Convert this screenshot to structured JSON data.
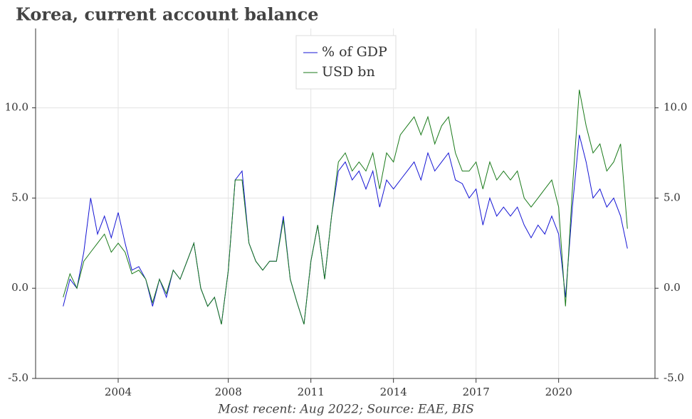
{
  "chart_data": {
    "type": "line",
    "title": "Korea, current account balance",
    "footnote": "Most recent: Aug 2022; Source: EAE, BIS",
    "x": [
      2002,
      2002.25,
      2002.5,
      2002.75,
      2003,
      2003.25,
      2003.5,
      2003.75,
      2004,
      2004.25,
      2004.5,
      2004.75,
      2005,
      2005.25,
      2005.5,
      2005.75,
      2006,
      2006.25,
      2006.5,
      2006.75,
      2007,
      2007.25,
      2007.5,
      2007.75,
      2008,
      2008.25,
      2008.5,
      2008.75,
      2009,
      2009.25,
      2009.5,
      2009.75,
      2010,
      2010.25,
      2010.5,
      2010.75,
      2011,
      2011.25,
      2011.5,
      2011.75,
      2012,
      2012.25,
      2012.5,
      2012.75,
      2013,
      2013.25,
      2013.5,
      2013.75,
      2014,
      2014.25,
      2014.5,
      2014.75,
      2015,
      2015.25,
      2015.5,
      2015.75,
      2016,
      2016.25,
      2016.5,
      2016.75,
      2017,
      2017.25,
      2017.5,
      2017.75,
      2018,
      2018.25,
      2018.5,
      2018.75,
      2019,
      2019.25,
      2019.5,
      2019.75,
      2020,
      2020.25,
      2020.5,
      2020.75,
      2021,
      2021.25,
      2021.5,
      2021.75,
      2022,
      2022.25,
      2022.5
    ],
    "series": [
      {
        "name": "% of GDP",
        "color": "#1515d4",
        "values": [
          -1.0,
          0.5,
          0.0,
          2.0,
          5.0,
          3.0,
          4.0,
          2.8,
          4.2,
          2.5,
          1.0,
          1.2,
          0.5,
          -1.0,
          0.5,
          -0.5,
          1.0,
          0.5,
          1.5,
          2.5,
          0.0,
          -1.0,
          -0.5,
          -2.0,
          1.0,
          6.0,
          6.5,
          2.5,
          1.5,
          1.0,
          1.5,
          1.5,
          4.0,
          0.5,
          -0.8,
          -2.0,
          1.5,
          3.5,
          0.5,
          4.0,
          6.5,
          7.0,
          6.0,
          6.5,
          5.5,
          6.5,
          4.5,
          6.0,
          5.5,
          6.0,
          6.5,
          7.0,
          6.0,
          7.5,
          6.5,
          7.0,
          7.5,
          6.0,
          5.8,
          5.0,
          5.5,
          3.5,
          5.0,
          4.0,
          4.5,
          4.0,
          4.5,
          3.5,
          2.8,
          3.5,
          3.0,
          4.0,
          3.0,
          -0.5,
          4.5,
          8.5,
          7.0,
          5.0,
          5.5,
          4.5,
          5.0,
          4.0,
          2.2
        ]
      },
      {
        "name": "USD bn",
        "color": "#1a7a1a",
        "values": [
          -0.5,
          0.8,
          0.0,
          1.5,
          2.0,
          2.5,
          3.0,
          2.0,
          2.5,
          2.0,
          0.8,
          1.0,
          0.5,
          -0.8,
          0.5,
          -0.3,
          1.0,
          0.5,
          1.5,
          2.5,
          0.0,
          -1.0,
          -0.5,
          -2.0,
          1.0,
          6.0,
          6.0,
          2.5,
          1.5,
          1.0,
          1.5,
          1.5,
          3.8,
          0.5,
          -0.8,
          -2.0,
          1.5,
          3.5,
          0.5,
          4.0,
          7.0,
          7.5,
          6.5,
          7.0,
          6.5,
          7.5,
          5.5,
          7.5,
          7.0,
          8.5,
          9.0,
          9.5,
          8.5,
          9.5,
          8.0,
          9.0,
          9.5,
          7.5,
          6.5,
          6.5,
          7.0,
          5.5,
          7.0,
          6.0,
          6.5,
          6.0,
          6.5,
          5.0,
          4.5,
          5.0,
          5.5,
          6.0,
          4.5,
          -1.0,
          5.5,
          11.0,
          9.0,
          7.5,
          8.0,
          6.5,
          7.0,
          8.0,
          3.3
        ]
      }
    ],
    "xlim": [
      2001,
      2023.5
    ],
    "xticks": [
      2004,
      2008,
      2011,
      2014,
      2017,
      2020
    ],
    "ylim": [
      -5,
      14.4
    ],
    "yticks": [
      {
        "value": -5,
        "label": "-5.0"
      },
      {
        "value": 0,
        "label": "0.0"
      },
      {
        "value": 5,
        "label": "5.0"
      },
      {
        "value": 10,
        "label": "10.0"
      }
    ],
    "grid": true
  }
}
